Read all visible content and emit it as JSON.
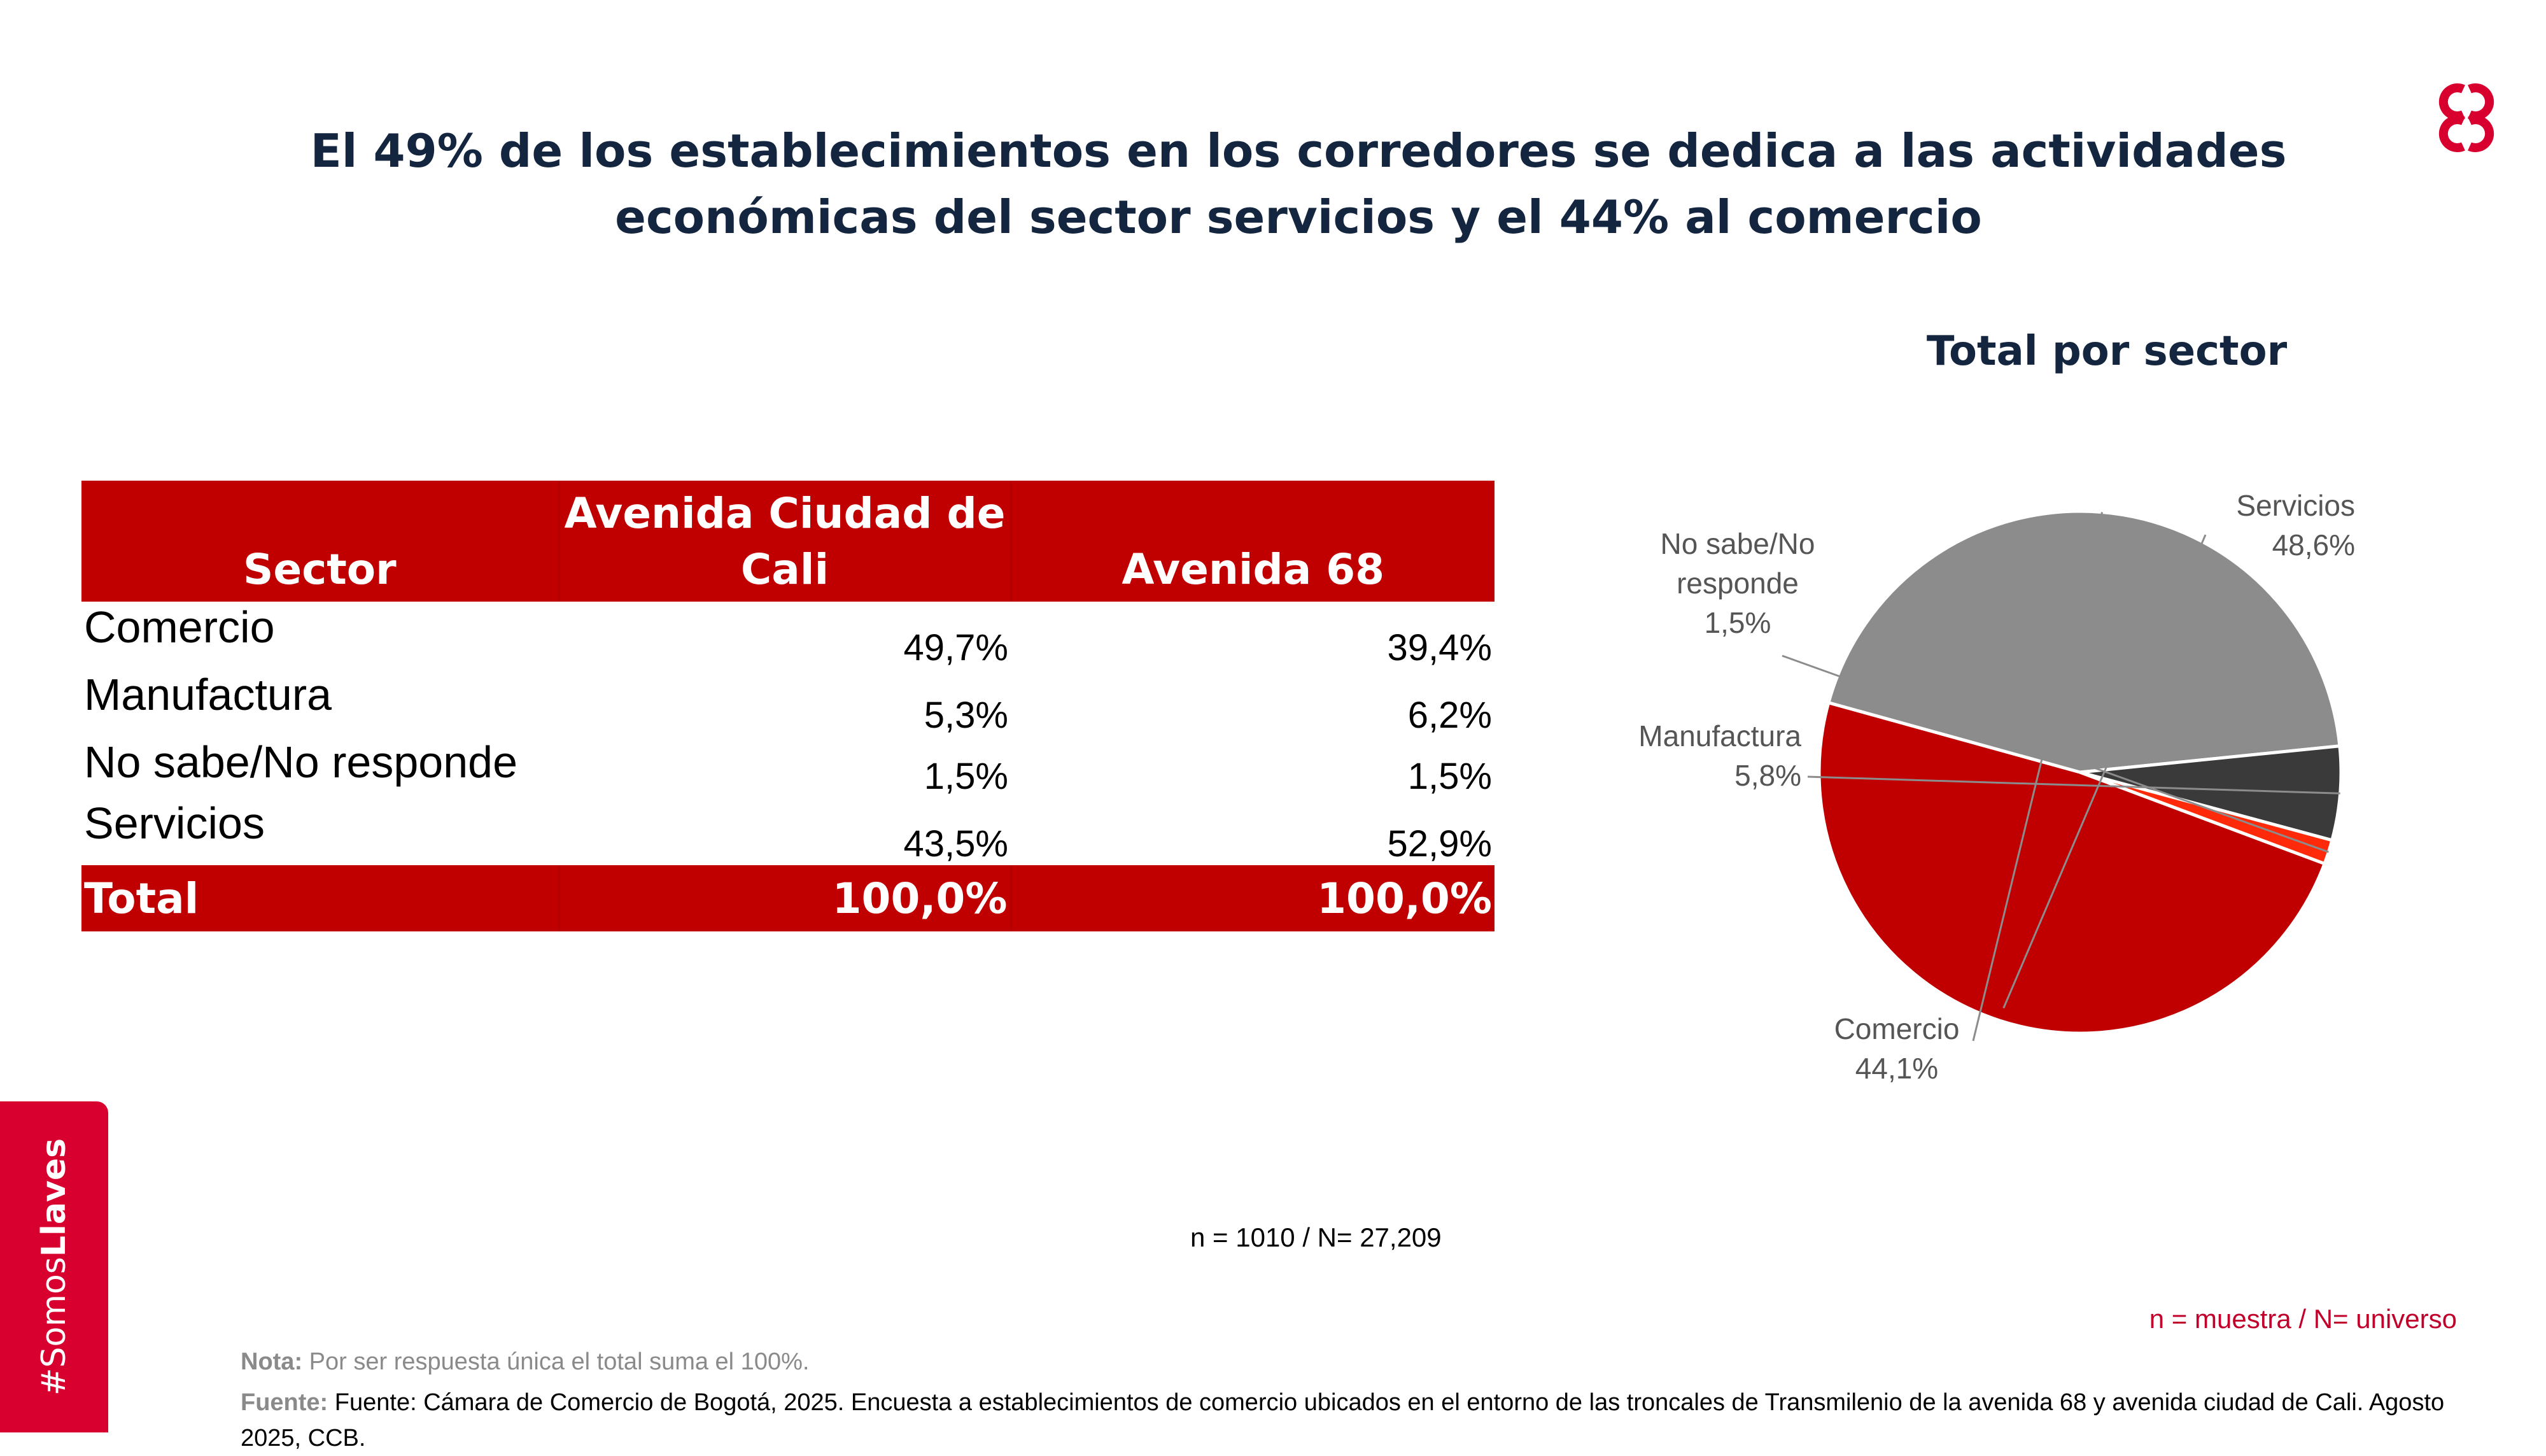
{
  "title_line1": "El 49% de los establecimientos en los corredores se dedica a las actividades",
  "title_line2": "económicas del sector servicios y el 44% al comercio",
  "logo_icon": "ccb-logo-icon",
  "colors": {
    "brand_red": "#c00000",
    "accent_red": "#d8002f",
    "title_navy": "#14263f"
  },
  "table": {
    "headers": [
      "Sector",
      "Avenida Ciudad de Cali",
      "Avenida 68"
    ],
    "rows": [
      [
        "Comercio",
        "49,7%",
        "39,4%"
      ],
      [
        "Manufactura",
        "5,3%",
        "6,2%"
      ],
      [
        "No sabe/No responde",
        "1,5%",
        "1,5%"
      ],
      [
        "Servicios",
        "43,5%",
        "52,9%"
      ]
    ],
    "total": [
      "Total",
      "100,0%",
      "100,0%"
    ]
  },
  "chart_data": {
    "type": "pie",
    "title": "Total por sector",
    "slices": [
      {
        "name": "Servicios",
        "value": 48.6,
        "label": "48,6%",
        "color": "#c00000"
      },
      {
        "name": "Comercio",
        "value": 44.1,
        "label": "44,1%",
        "color": "#8c8c8c"
      },
      {
        "name": "Manufactura",
        "value": 5.8,
        "label": "5,8%",
        "color": "#3a3a3a"
      },
      {
        "name": "No sabe/No responde",
        "value": 1.5,
        "label": "1,5%",
        "color": "#ff2a0a"
      }
    ]
  },
  "sample_note": "n = 1010 / N= 27,209",
  "legend_note": "n = muestra / N= universo",
  "note": {
    "label": "Nota:",
    "text": "Por ser respuesta única el total suma el 100%."
  },
  "source": {
    "label": "Fuente:",
    "text": "Fuente:  Cámara de Comercio de Bogotá, 2025. Encuesta a establecimientos de comercio ubicados en el entorno de las troncales de Transmilenio de la avenida 68 y avenida ciudad de Cali. Agosto 2025, CCB."
  },
  "side_tab": {
    "hash_prefix": "#Somos",
    "bold": "Llaves"
  }
}
